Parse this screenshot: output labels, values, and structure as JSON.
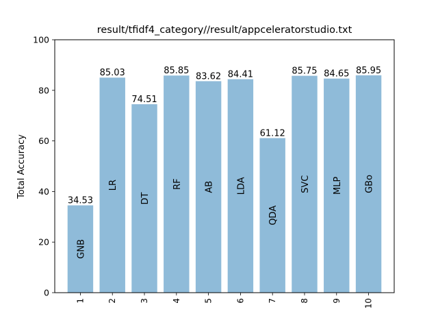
{
  "chart_data": {
    "type": "bar",
    "title": "result/tfidf4_category//result/appceleratorstudio.txt",
    "xlabel": "",
    "ylabel": "Total Accuracy",
    "ylim": [
      0,
      100
    ],
    "yticks": [
      "0",
      "20",
      "40",
      "60",
      "80",
      "100"
    ],
    "categories": [
      "1",
      "2",
      "3",
      "4",
      "5",
      "6",
      "7",
      "8",
      "9",
      "10"
    ],
    "values": [
      34.53,
      85.03,
      74.51,
      85.85,
      83.62,
      84.41,
      61.12,
      85.75,
      84.65,
      85.95
    ],
    "value_labels": [
      "34.53",
      "85.03",
      "74.51",
      "85.85",
      "83.62",
      "84.41",
      "61.12",
      "85.75",
      "84.65",
      "85.95"
    ],
    "bar_labels": [
      "GNB",
      "LR",
      "DT",
      "RF",
      "AB",
      "LDA",
      "QDA",
      "SVC",
      "MLP",
      "GBo"
    ],
    "bar_color": "#8fbbd9",
    "grid": false,
    "legend": "none"
  }
}
